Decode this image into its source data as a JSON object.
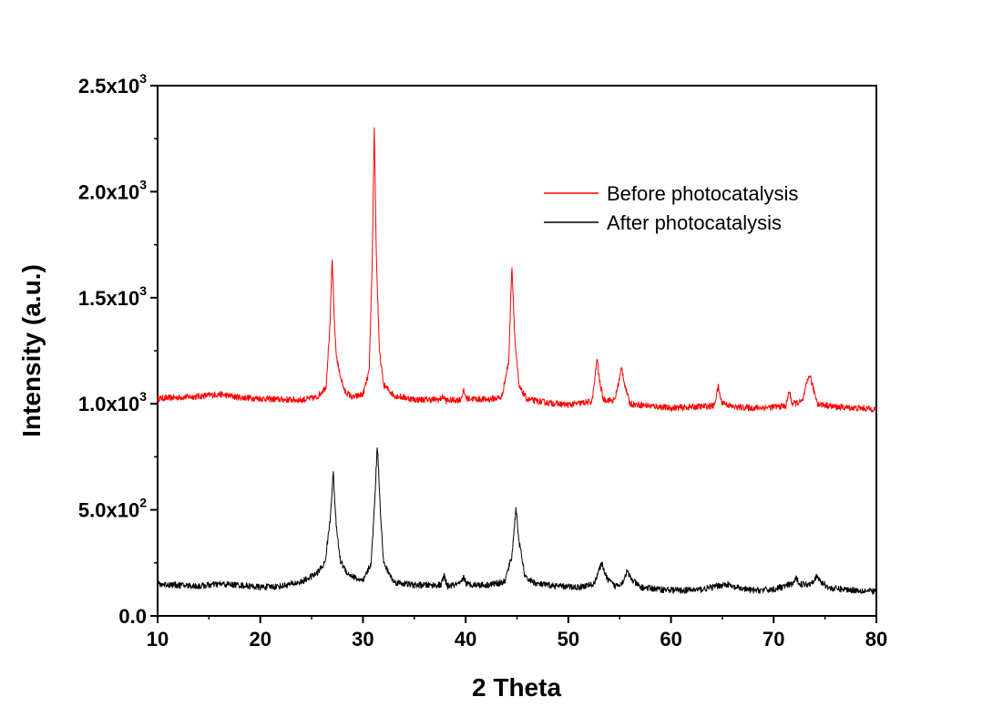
{
  "chart_data": {
    "type": "line",
    "xlabel": "2 Theta",
    "ylabel": "Intensity (a.u.)",
    "xlim": [
      10,
      80
    ],
    "ylim": [
      0,
      2500
    ],
    "x_ticks": [
      10,
      20,
      30,
      40,
      50,
      60,
      70,
      80
    ],
    "x_tick_labels": [
      "10",
      "20",
      "30",
      "40",
      "50",
      "60",
      "70",
      "80"
    ],
    "y_ticks": [
      {
        "value": 0,
        "mantissa": "0.0",
        "exponent": ""
      },
      {
        "value": 500,
        "mantissa": "5.0x10",
        "exponent": "2"
      },
      {
        "value": 1000,
        "mantissa": "1.0x10",
        "exponent": "3"
      },
      {
        "value": 1500,
        "mantissa": "1.5x10",
        "exponent": "3"
      },
      {
        "value": 2000,
        "mantissa": "2.0x10",
        "exponent": "3"
      },
      {
        "value": 2500,
        "mantissa": "2.5x10",
        "exponent": "3"
      }
    ],
    "grid": false,
    "legend_position": "top-right",
    "series": [
      {
        "name": "Before photocatalysis",
        "color": "#ff0000",
        "points": [
          [
            10,
            1025
          ],
          [
            12,
            1030
          ],
          [
            14,
            1035
          ],
          [
            16,
            1045
          ],
          [
            18,
            1030
          ],
          [
            20,
            1025
          ],
          [
            22,
            1020
          ],
          [
            24,
            1018
          ],
          [
            25.5,
            1030
          ],
          [
            26.4,
            1080
          ],
          [
            26.8,
            1380
          ],
          [
            27.0,
            1690
          ],
          [
            27.2,
            1400
          ],
          [
            27.4,
            1230
          ],
          [
            27.7,
            1150
          ],
          [
            28.2,
            1060
          ],
          [
            29,
            1030
          ],
          [
            30.0,
            1045
          ],
          [
            30.6,
            1150
          ],
          [
            30.9,
            1650
          ],
          [
            31.1,
            2320
          ],
          [
            31.3,
            1700
          ],
          [
            31.6,
            1250
          ],
          [
            32.0,
            1090
          ],
          [
            33,
            1040
          ],
          [
            35,
            1020
          ],
          [
            37.5,
            1020
          ],
          [
            37.8,
            1035
          ],
          [
            38.1,
            1015
          ],
          [
            39.5,
            1020
          ],
          [
            39.8,
            1060
          ],
          [
            40.1,
            1025
          ],
          [
            42,
            1020
          ],
          [
            43.5,
            1030
          ],
          [
            44.2,
            1200
          ],
          [
            44.5,
            1660
          ],
          [
            44.8,
            1300
          ],
          [
            45.2,
            1080
          ],
          [
            46,
            1020
          ],
          [
            48,
            1005
          ],
          [
            50,
            995
          ],
          [
            52.3,
            1010
          ],
          [
            52.6,
            1120
          ],
          [
            52.8,
            1220
          ],
          [
            53.0,
            1120
          ],
          [
            53.4,
            1020
          ],
          [
            54.5,
            1015
          ],
          [
            54.9,
            1100
          ],
          [
            55.2,
            1170
          ],
          [
            55.5,
            1090
          ],
          [
            56.0,
            1000
          ],
          [
            58,
            990
          ],
          [
            60,
            980
          ],
          [
            62,
            985
          ],
          [
            64.2,
            990
          ],
          [
            64.6,
            1080
          ],
          [
            64.9,
            1010
          ],
          [
            66,
            985
          ],
          [
            68,
            980
          ],
          [
            70,
            985
          ],
          [
            71.2,
            990
          ],
          [
            71.5,
            1060
          ],
          [
            71.8,
            1000
          ],
          [
            72.8,
            1010
          ],
          [
            73.2,
            1090
          ],
          [
            73.5,
            1140
          ],
          [
            73.8,
            1080
          ],
          [
            74.3,
            1000
          ],
          [
            76,
            985
          ],
          [
            78,
            980
          ],
          [
            80,
            975
          ]
        ]
      },
      {
        "name": "After photocatalysis",
        "color": "#000000",
        "points": [
          [
            10,
            150
          ],
          [
            12,
            145
          ],
          [
            14,
            140
          ],
          [
            16,
            150
          ],
          [
            18,
            145
          ],
          [
            20,
            135
          ],
          [
            22,
            140
          ],
          [
            24,
            160
          ],
          [
            25.5,
            200
          ],
          [
            26.3,
            250
          ],
          [
            26.8,
            450
          ],
          [
            27.1,
            680
          ],
          [
            27.4,
            420
          ],
          [
            27.8,
            260
          ],
          [
            28.5,
            200
          ],
          [
            30,
            160
          ],
          [
            30.8,
            250
          ],
          [
            31.1,
            500
          ],
          [
            31.4,
            810
          ],
          [
            31.7,
            500
          ],
          [
            32.0,
            250
          ],
          [
            33,
            160
          ],
          [
            35,
            145
          ],
          [
            37.6,
            145
          ],
          [
            37.9,
            190
          ],
          [
            38.2,
            140
          ],
          [
            39.5,
            150
          ],
          [
            39.8,
            185
          ],
          [
            40.1,
            150
          ],
          [
            42,
            145
          ],
          [
            43.8,
            160
          ],
          [
            44.5,
            280
          ],
          [
            44.9,
            510
          ],
          [
            45.2,
            350
          ],
          [
            45.8,
            180
          ],
          [
            47,
            150
          ],
          [
            49,
            140
          ],
          [
            51,
            135
          ],
          [
            52.5,
            150
          ],
          [
            53.0,
            220
          ],
          [
            53.3,
            245
          ],
          [
            53.7,
            180
          ],
          [
            54.5,
            140
          ],
          [
            55.3,
            160
          ],
          [
            55.7,
            210
          ],
          [
            56.1,
            175
          ],
          [
            57,
            135
          ],
          [
            59,
            125
          ],
          [
            61,
            120
          ],
          [
            63,
            125
          ],
          [
            65.0,
            145
          ],
          [
            65.5,
            150
          ],
          [
            66,
            135
          ],
          [
            68,
            120
          ],
          [
            70,
            125
          ],
          [
            71.8,
            150
          ],
          [
            72.2,
            175
          ],
          [
            72.6,
            150
          ],
          [
            73.5,
            150
          ],
          [
            74.2,
            185
          ],
          [
            74.6,
            160
          ],
          [
            75.5,
            130
          ],
          [
            77,
            125
          ],
          [
            79,
            118
          ],
          [
            80,
            115
          ]
        ]
      }
    ]
  }
}
